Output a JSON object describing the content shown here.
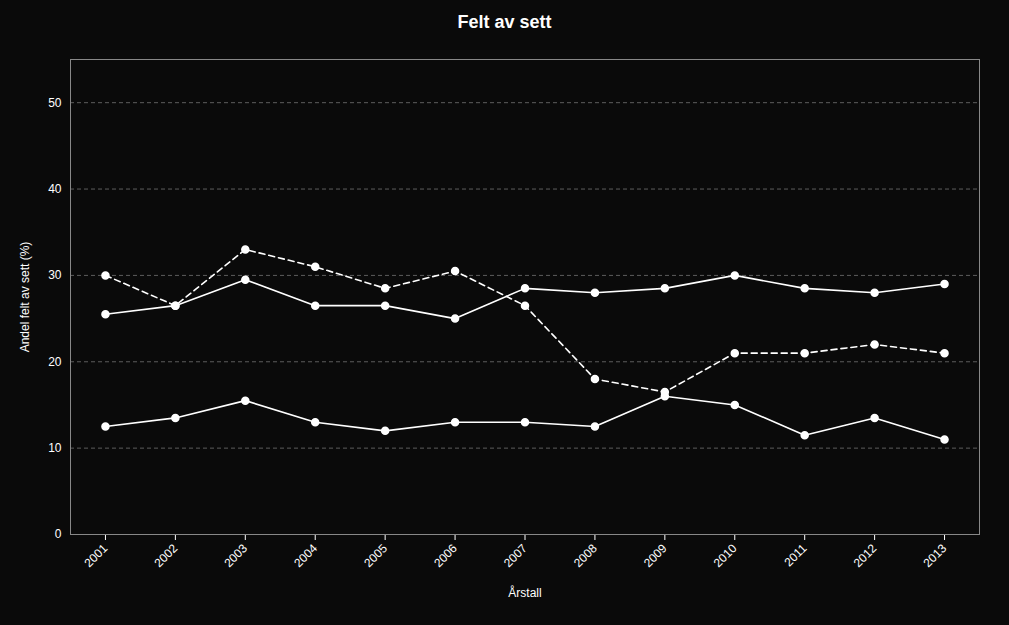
{
  "chart_data": {
    "type": "line",
    "title": "Felt av sett",
    "xlabel": "Årstall",
    "ylabel": "Andel felt av sett (%)",
    "x": [
      2001,
      2002,
      2003,
      2004,
      2005,
      2006,
      2007,
      2008,
      2009,
      2010,
      2011,
      2012,
      2013
    ],
    "series": [
      {
        "color": "#ffffff",
        "line_style": "solid",
        "marker": "circle",
        "values": [
          25.5,
          26.5,
          29.5,
          26.5,
          26.5,
          25.0,
          28.5,
          28.0,
          28.5,
          30.0,
          28.5,
          28.0,
          29.0
        ]
      },
      {
        "color": "#ffffff",
        "line_style": "dashed",
        "marker": "circle",
        "values": [
          30.0,
          26.5,
          33.0,
          31.0,
          28.5,
          30.5,
          26.5,
          18.0,
          16.5,
          21.0,
          21.0,
          22.0,
          21.0
        ]
      },
      {
        "color": "#ffffff",
        "line_style": "solid",
        "marker": "circle",
        "values": [
          12.5,
          13.5,
          15.5,
          13.0,
          12.0,
          13.0,
          13.0,
          12.5,
          16.0,
          15.0,
          11.5,
          13.5,
          11.0
        ]
      }
    ],
    "xlim": [
      2000.5,
      2013.5
    ],
    "xticks": [
      2001,
      2002,
      2003,
      2004,
      2005,
      2006,
      2007,
      2008,
      2009,
      2010,
      2011,
      2012,
      2013
    ],
    "ylim": [
      0,
      55
    ],
    "yticks": [
      0,
      10,
      20,
      30,
      40,
      50
    ],
    "grid": true
  }
}
